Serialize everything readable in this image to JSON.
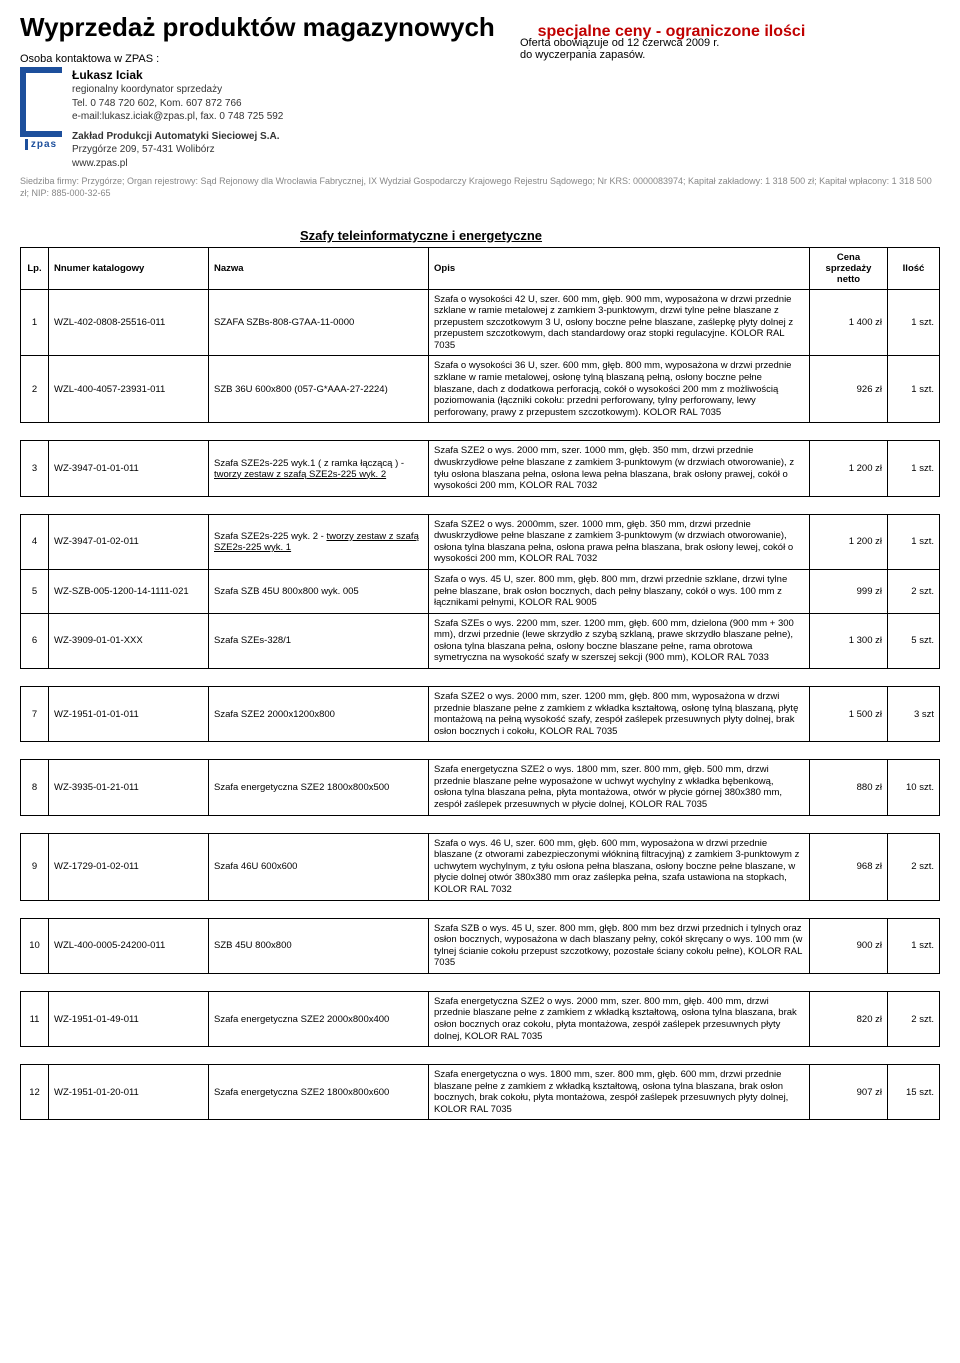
{
  "header": {
    "main_title": "Wyprzedaż produktów magazynowych",
    "sub_title": "specjalne ceny - ograniczone ilości",
    "sub_title_color": "#c00000",
    "contact_label": "Osoba kontaktowa w ZPAS :",
    "offer_line1": "Oferta obowiązuje od 12 czerwca 2009 r.",
    "offer_line2": "do wyczerpania zapasów."
  },
  "contact": {
    "name": "Łukasz Iciak",
    "role": "regionalny koordynator sprzedaży",
    "tel": "Tel. 0 748 720 602, Kom. 607 872 766",
    "email_fax": "e-mail:lukasz.iciak@zpas.pl,  fax. 0 748 725 592",
    "firm": "Zakład Produkcji Automatyki Sieciowej S.A.",
    "addr": "Przygórze 209, 57-431 Wolibórz",
    "web": "www.zpas.pl",
    "brand": "zpas",
    "footnote": "Siedziba firmy: Przygórze; Organ rejestrowy: Sąd Rejonowy dla Wrocławia Fabrycznej, IX Wydział Gospodarczy Krajowego Rejestru Sądowego; Nr KRS: 0000083974; Kapitał zakładowy: 1 318 500 zł; Kapitał wpłacony: 1 318 500 zł; NIP: 885-000-32-65"
  },
  "section_title": "Szafy teleinformatyczne i energetyczne",
  "columns": {
    "lp": "Lp.",
    "kat": "Nnumer katalogowy",
    "nazwa": "Nazwa",
    "opis": "Opis",
    "cena": "Cena sprzedaży netto",
    "ilosc": "Ilość"
  },
  "rows": [
    {
      "lp": "1",
      "kat": "WZL-402-0808-25516-011",
      "nazwa": "SZAFA SZBs-808-G7AA-11-0000",
      "opis": "Szafa o wysokości 42 U,  szer. 600 mm, głęb. 900 mm, wyposażona w drzwi przednie szklane w ramie metalowej z zamkiem 3-punktowym, drzwi tylne pełne blaszane z przepustem szczotkowym 3 U, osłony boczne pełne blaszane, zaślepkę płyty dolnej z przepustem szczotkowym, dach standardowy oraz stopki regulacyjne. KOLOR RAL 7035",
      "cena": "1 400 zł",
      "ilosc": "1 szt."
    },
    {
      "lp": "2",
      "kat": "WZL-400-4057-23931-011",
      "nazwa": "SZB 36U 600x800 (057-G*AAA-27-2224)",
      "opis": "Szafa o wysokości 36 U, szer. 600 mm, głęb. 800 mm, wyposażona w drzwi przednie szklane w ramie metalowej, osłonę tylną blaszaną pełną, osłony boczne pełne blaszane, dach z dodatkowa perforacją, cokół o wysokości 200 mm z możliwością poziomowania (łączniki cokołu: przedni perforowany, tylny perforowany, lewy perforowany, prawy z przepustem szczotkowym). KOLOR RAL 7035",
      "cena": "926 zł",
      "ilosc": "1 szt."
    },
    {
      "lp": "3",
      "kat": "WZ-3947-01-01-011",
      "nazwa": "Szafa SZE2s-225 wyk.1 ( z ramka łączącą ) - tworzy zestaw z szafą SZE2s-225 wyk. 2",
      "nazwa_u": "tworzy zestaw z szafą SZE2s-225 wyk. 2",
      "opis": "Szafa SZE2 o wys. 2000 mm, szer. 1000 mm, głęb. 350 mm, drzwi przednie dwuskrzydłowe pełne blaszane z zamkiem 3-punktowym (w drzwiach otworowanie), z tyłu osłona blaszana pełna, osłona lewa pełna blaszana, brak osłony prawej, cokół o wysokości 200 mm, KOLOR RAL 7032",
      "cena": "1 200 zł",
      "ilosc": "1 szt.",
      "gap": true
    },
    {
      "lp": "4",
      "kat": "WZ-3947-01-02-011",
      "nazwa": "Szafa SZE2s-225 wyk. 2 - tworzy zestaw z szafą SZE2s-225 wyk. 1",
      "nazwa_u": "tworzy zestaw z szafą SZE2s-225 wyk. 1",
      "opis": "Szafa SZE2 o wys. 2000mm, szer. 1000 mm, głęb. 350 mm, drzwi przednie dwuskrzydłowe pełne blaszane z zamkiem 3-punktowym (w drzwiach otworowanie), osłona tylna blaszana pełna, osłona prawa pełna blaszana, brak osłony lewej, cokół o wysokości 200 mm, KOLOR RAL 7032",
      "cena": "1 200 zł",
      "ilosc": "1 szt.",
      "gap": true
    },
    {
      "lp": "5",
      "kat": "WZ-SZB-005-1200-14-1111-021",
      "nazwa": "Szafa SZB 45U 800x800 wyk. 005",
      "opis": "Szafa o wys. 45 U, szer. 800 mm, głęb. 800 mm, drzwi przednie szklane, drzwi tylne pełne blaszane, brak osłon bocznych, dach pełny blaszany, cokół o wys. 100 mm z łącznikami pełnymi, KOLOR RAL 9005",
      "cena": "999 zł",
      "ilosc": "2 szt."
    },
    {
      "lp": "6",
      "kat": "WZ-3909-01-01-XXX",
      "nazwa": "Szafa SZEs-328/1",
      "opis": "Szafa SZEs o wys. 2200 mm, szer. 1200 mm, głęb. 600 mm, dzielona (900 mm + 300 mm), drzwi przednie (lewe skrzydło z szybą szklaną, prawe skrzydło blaszane pełne), osłona tylna blaszana pełna, osłony boczne blaszane pełne, rama obrotowa symetryczna na wysokość szafy w szerszej sekcji (900 mm), KOLOR RAL 7033",
      "cena": "1 300 zł",
      "ilosc": "5 szt."
    },
    {
      "lp": "7",
      "kat": "WZ-1951-01-01-011",
      "nazwa": "Szafa SZE2 2000x1200x800",
      "opis": "Szafa SZE2 o wys. 2000 mm, szer. 1200 mm, głęb. 800 mm, wyposażona w drzwi przednie blaszane pełne z zamkiem z wkładka kształtową, osłonę tylną blaszaną, płytę montażową na pełną wysokość szafy, zespół zaślepek przesuwnych płyty dolnej, brak osłon bocznych i cokołu, KOLOR RAL 7035",
      "cena": "1 500 zł",
      "ilosc": "3 szt",
      "gap": true
    },
    {
      "lp": "8",
      "kat": "WZ-3935-01-21-011",
      "nazwa": "Szafa energetyczna SZE2 1800x800x500",
      "opis": "Szafa energetyczna SZE2 o wys. 1800 mm, szer. 800 mm, głęb. 500 mm, drzwi przednie blaszane pełne wyposażone w uchwyt wychylny z wkładka bębenkową, osłona tylna blaszana pełna, płyta montażowa, otwór w płycie górnej 380x380 mm, zespół zaślepek przesuwnych w płycie dolnej, KOLOR RAL 7035",
      "cena": "880 zł",
      "ilosc": "10 szt.",
      "gap": true
    },
    {
      "lp": "9",
      "kat": "WZ-1729-01-02-011",
      "nazwa": "Szafa 46U 600x600",
      "opis": "Szafa o wys. 46 U, szer. 600 mm, głęb. 600 mm, wyposażona w drzwi przednie blaszane (z otworami zabezpieczonymi włókniną filtracyjną) z zamkiem 3-punktowym z uchwytem wychylnym, z tyłu osłona pełna blaszana, osłony boczne pełne blaszane, w płycie dolnej otwór 380x380 mm oraz zaślepka pełna, szafa ustawiona na stopkach, KOLOR RAL 7032",
      "cena": "968 zł",
      "ilosc": "2 szt.",
      "gap": true
    },
    {
      "lp": "10",
      "kat": "WZL-400-0005-24200-011",
      "nazwa": "SZB 45U 800x800",
      "opis": "Szafa SZB o wys. 45 U, szer. 800 mm, głęb. 800 mm bez drzwi przednich i tylnych oraz osłon bocznych, wyposażona w dach blaszany pełny, cokół skręcany o wys. 100 mm (w tylnej ścianie cokołu przepust szczotkowy, pozostałe ściany cokołu pełne), KOLOR RAL 7035",
      "cena": "900 zł",
      "ilosc": "1 szt.",
      "gap": true
    },
    {
      "lp": "11",
      "kat": "WZ-1951-01-49-011",
      "nazwa": "Szafa energetyczna SZE2 2000x800x400",
      "opis": "Szafa energetyczna SZE2 o wys. 2000 mm, szer. 800 mm, głęb. 400 mm, drzwi przednie blaszane pełne z zamkiem z wkładką kształtową, osłona tylna blaszana, brak osłon bocznych oraz cokołu, płyta montażowa, zespół zaślepek przesuwnych płyty dolnej, KOLOR RAL 7035",
      "cena": "820 zł",
      "ilosc": "2 szt.",
      "gap": true
    },
    {
      "lp": "12",
      "kat": "WZ-1951-01-20-011",
      "nazwa": "Szafa energetyczna SZE2 1800x800x600",
      "opis": "Szafa energetyczna o wys. 1800 mm, szer. 800 mm, głęb. 600 mm, drzwi przednie blaszane pełne z zamkiem z wkładką kształtową, osłona tylna blaszana, brak osłon bocznych, brak cokołu, płyta montażowa, zespół zaślepek przesuwnych płyty dolnej, KOLOR RAL 7035",
      "cena": "907 zł",
      "ilosc": "15 szt.",
      "gap": true
    }
  ]
}
